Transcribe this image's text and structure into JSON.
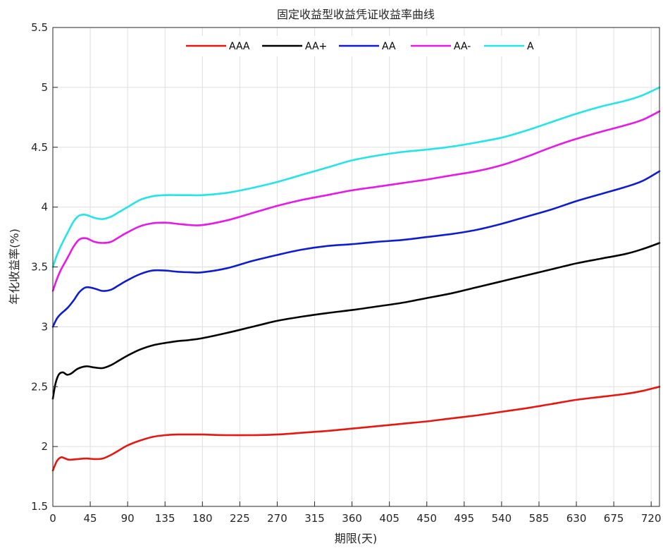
{
  "chart_data": {
    "type": "line",
    "title": "固定收益型收益凭证收益率曲线",
    "xlabel": "期限(天)",
    "ylabel": "年化收益率(%)",
    "xlim": [
      0,
      730
    ],
    "ylim": [
      1.5,
      5.5
    ],
    "xticks": [
      0,
      45,
      90,
      135,
      180,
      225,
      270,
      315,
      360,
      405,
      450,
      495,
      540,
      585,
      630,
      675,
      720
    ],
    "yticks": [
      1.5,
      2,
      2.5,
      3,
      3.5,
      4,
      4.5,
      5,
      5.5
    ],
    "grid": true,
    "legend_position": "top",
    "series": [
      {
        "name": "AAA",
        "color": "#e8160f",
        "x": [
          0,
          5,
          10,
          15,
          20,
          30,
          40,
          50,
          60,
          70,
          80,
          90,
          105,
          120,
          135,
          150,
          165,
          180,
          210,
          240,
          270,
          300,
          330,
          360,
          390,
          420,
          450,
          480,
          510,
          540,
          570,
          600,
          630,
          660,
          690,
          710,
          730
        ],
        "y": [
          1.8,
          1.88,
          1.91,
          1.9,
          1.89,
          1.895,
          1.9,
          1.895,
          1.9,
          1.93,
          1.97,
          2.01,
          2.05,
          2.08,
          2.095,
          2.1,
          2.1,
          2.1,
          2.095,
          2.095,
          2.1,
          2.115,
          2.13,
          2.15,
          2.17,
          2.19,
          2.21,
          2.235,
          2.26,
          2.29,
          2.32,
          2.355,
          2.39,
          2.415,
          2.44,
          2.465,
          2.5
        ]
      },
      {
        "name": "AA+",
        "color": "#000000",
        "x": [
          0,
          3,
          7,
          12,
          17,
          22,
          30,
          40,
          50,
          60,
          70,
          80,
          90,
          105,
          120,
          135,
          150,
          165,
          180,
          210,
          240,
          270,
          300,
          330,
          360,
          390,
          420,
          450,
          480,
          510,
          540,
          570,
          600,
          630,
          660,
          690,
          710,
          730
        ],
        "y": [
          2.4,
          2.52,
          2.6,
          2.62,
          2.6,
          2.61,
          2.65,
          2.67,
          2.66,
          2.655,
          2.68,
          2.72,
          2.76,
          2.81,
          2.845,
          2.865,
          2.88,
          2.89,
          2.905,
          2.95,
          3.0,
          3.05,
          3.085,
          3.115,
          3.14,
          3.17,
          3.2,
          3.24,
          3.28,
          3.33,
          3.38,
          3.43,
          3.48,
          3.53,
          3.57,
          3.61,
          3.65,
          3.7
        ]
      },
      {
        "name": "AA",
        "color": "#0e1dd3",
        "x": [
          0,
          5,
          10,
          18,
          25,
          32,
          40,
          50,
          60,
          70,
          80,
          90,
          105,
          120,
          135,
          150,
          165,
          180,
          210,
          240,
          270,
          300,
          330,
          360,
          390,
          420,
          450,
          480,
          510,
          540,
          570,
          600,
          630,
          660,
          690,
          710,
          730
        ],
        "y": [
          3.0,
          3.07,
          3.11,
          3.16,
          3.22,
          3.29,
          3.33,
          3.32,
          3.3,
          3.31,
          3.35,
          3.39,
          3.44,
          3.47,
          3.47,
          3.46,
          3.455,
          3.455,
          3.49,
          3.55,
          3.6,
          3.645,
          3.675,
          3.69,
          3.71,
          3.725,
          3.75,
          3.775,
          3.81,
          3.86,
          3.92,
          3.98,
          4.05,
          4.11,
          4.17,
          4.22,
          4.3
        ]
      },
      {
        "name": "AA-",
        "color": "#e818e8",
        "x": [
          0,
          5,
          10,
          18,
          25,
          32,
          40,
          50,
          60,
          70,
          80,
          90,
          105,
          120,
          135,
          150,
          165,
          180,
          210,
          240,
          270,
          300,
          330,
          360,
          390,
          420,
          450,
          480,
          510,
          540,
          570,
          600,
          630,
          660,
          690,
          710,
          730
        ],
        "y": [
          3.3,
          3.4,
          3.48,
          3.58,
          3.67,
          3.73,
          3.74,
          3.71,
          3.7,
          3.71,
          3.75,
          3.79,
          3.84,
          3.865,
          3.87,
          3.86,
          3.85,
          3.85,
          3.89,
          3.95,
          4.01,
          4.06,
          4.1,
          4.14,
          4.17,
          4.2,
          4.23,
          4.265,
          4.3,
          4.35,
          4.42,
          4.5,
          4.57,
          4.63,
          4.685,
          4.73,
          4.8
        ]
      },
      {
        "name": "A",
        "color": "#22e5e8",
        "x": [
          0,
          5,
          10,
          18,
          25,
          32,
          40,
          50,
          60,
          70,
          80,
          90,
          105,
          120,
          135,
          150,
          165,
          180,
          210,
          240,
          270,
          300,
          330,
          360,
          390,
          420,
          450,
          480,
          510,
          540,
          570,
          600,
          630,
          660,
          690,
          710,
          730
        ],
        "y": [
          3.5,
          3.6,
          3.68,
          3.79,
          3.88,
          3.93,
          3.935,
          3.91,
          3.9,
          3.92,
          3.96,
          4.0,
          4.06,
          4.09,
          4.1,
          4.1,
          4.1,
          4.1,
          4.12,
          4.16,
          4.21,
          4.27,
          4.33,
          4.39,
          4.43,
          4.46,
          4.48,
          4.505,
          4.54,
          4.58,
          4.64,
          4.71,
          4.78,
          4.84,
          4.89,
          4.935,
          5.0
        ]
      }
    ]
  }
}
